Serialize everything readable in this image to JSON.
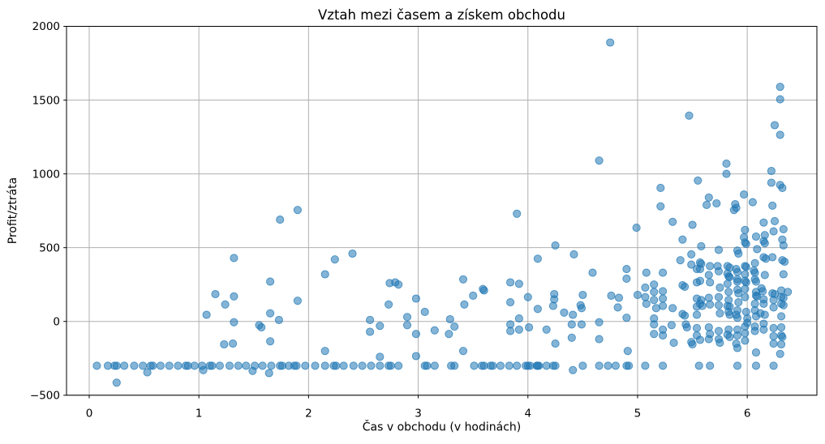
{
  "figure": {
    "title": "Vztah mezi časem a získem obchodu"
  },
  "chart_data": {
    "type": "scatter",
    "title": "Vztah mezi časem a získem obchodu",
    "xlabel": "Čas v obchodu (v hodinách)",
    "ylabel": "Profit/ztráta",
    "xlim": [
      -0.207,
      6.635
    ],
    "ylim": [
      -500,
      2000
    ],
    "grid": true,
    "legend_position": "none",
    "marker": {
      "shape": "circle",
      "color": "#1f77b4",
      "fill_alpha": 0.55,
      "edge_alpha": 0.75,
      "radius_px": 4.6
    },
    "grid_color": "#b0b0b0",
    "spine_color": "#000000",
    "xticks": [
      {
        "value": 0,
        "label": "0"
      },
      {
        "value": 1,
        "label": "1"
      },
      {
        "value": 2,
        "label": "2"
      },
      {
        "value": 3,
        "label": "3"
      },
      {
        "value": 4,
        "label": "4"
      },
      {
        "value": 5,
        "label": "5"
      },
      {
        "value": 6,
        "label": "6"
      }
    ],
    "yticks": [
      {
        "value": -500,
        "label": "−500"
      },
      {
        "value": 0,
        "label": "0"
      },
      {
        "value": 500,
        "label": "500"
      },
      {
        "value": 1000,
        "label": "1000"
      },
      {
        "value": 1500,
        "label": "1500"
      },
      {
        "value": 2000,
        "label": "2000"
      }
    ],
    "points": [
      [
        0.07,
        -300
      ],
      [
        0.17,
        -300
      ],
      [
        0.32,
        -300
      ],
      [
        0.41,
        -300
      ],
      [
        0.49,
        -300
      ],
      [
        0.65,
        -300
      ],
      [
        0.73,
        -300
      ],
      [
        0.81,
        -300
      ],
      [
        0.96,
        -300
      ],
      [
        1.03,
        -300
      ],
      [
        1.19,
        -300
      ],
      [
        1.28,
        -300
      ],
      [
        1.36,
        -300
      ],
      [
        1.43,
        -300
      ],
      [
        1.51,
        -300
      ],
      [
        1.58,
        -300
      ],
      [
        1.66,
        -300
      ],
      [
        1.82,
        -300
      ],
      [
        1.97,
        -300
      ],
      [
        2.06,
        -300
      ],
      [
        2.15,
        -300
      ],
      [
        2.32,
        -300
      ],
      [
        2.41,
        -300
      ],
      [
        2.49,
        -300
      ],
      [
        2.57,
        -300
      ],
      [
        2.65,
        -300
      ],
      [
        2.82,
        -300
      ],
      [
        3.15,
        -300
      ],
      [
        3.3,
        -300
      ],
      [
        3.33,
        -300
      ],
      [
        3.51,
        -300
      ],
      [
        3.75,
        -300
      ],
      [
        3.83,
        -300
      ],
      [
        3.9,
        -300
      ],
      [
        3.98,
        -300
      ],
      [
        4.17,
        -300
      ],
      [
        4.5,
        -300
      ],
      [
        4.65,
        -300
      ],
      [
        4.73,
        -300
      ],
      [
        4.8,
        -300
      ],
      [
        5.07,
        -300
      ],
      [
        5.23,
        -300
      ],
      [
        5.56,
        -300
      ],
      [
        5.66,
        -300
      ],
      [
        5.91,
        -300
      ],
      [
        6.08,
        -300
      ],
      [
        6.24,
        -300
      ],
      [
        0.23,
        -300
      ],
      [
        0.25,
        -300
      ],
      [
        0.56,
        -300
      ],
      [
        0.58,
        -300
      ],
      [
        0.88,
        -300
      ],
      [
        0.9,
        -300
      ],
      [
        1.1,
        -300
      ],
      [
        1.12,
        -300
      ],
      [
        1.74,
        -300
      ],
      [
        1.76,
        -300
      ],
      [
        1.87,
        -300
      ],
      [
        1.89,
        -300
      ],
      [
        2.23,
        -300
      ],
      [
        2.25,
        -300
      ],
      [
        2.73,
        -300
      ],
      [
        2.75,
        -300
      ],
      [
        3.06,
        -300
      ],
      [
        3.08,
        -300
      ],
      [
        3.58,
        -300
      ],
      [
        3.6,
        -300
      ],
      [
        3.66,
        -300
      ],
      [
        3.68,
        -300
      ],
      [
        4.0,
        -300
      ],
      [
        4.02,
        -300
      ],
      [
        4.23,
        -300
      ],
      [
        4.25,
        -300
      ],
      [
        4.9,
        -300
      ],
      [
        4.92,
        -300
      ],
      [
        4.08,
        -300
      ],
      [
        4.09,
        -300
      ],
      [
        4.1,
        -300
      ],
      [
        0.25,
        -415
      ],
      [
        0.53,
        -345
      ],
      [
        1.04,
        -330
      ],
      [
        1.49,
        -335
      ],
      [
        1.64,
        -350
      ],
      [
        4.41,
        -330
      ],
      [
        1.07,
        45
      ],
      [
        1.15,
        185
      ],
      [
        1.24,
        115
      ],
      [
        1.32,
        430
      ],
      [
        1.32,
        170
      ],
      [
        1.32,
        -5
      ],
      [
        1.23,
        -155
      ],
      [
        1.31,
        -150
      ],
      [
        1.55,
        -25
      ],
      [
        1.57,
        -40
      ],
      [
        1.65,
        270
      ],
      [
        1.65,
        55
      ],
      [
        1.65,
        -135
      ],
      [
        1.73,
        10
      ],
      [
        1.74,
        690
      ],
      [
        1.9,
        755
      ],
      [
        1.9,
        140
      ],
      [
        2.15,
        320
      ],
      [
        2.15,
        -200
      ],
      [
        2.24,
        420
      ],
      [
        2.4,
        460
      ],
      [
        2.56,
        10
      ],
      [
        2.56,
        -70
      ],
      [
        2.65,
        -30
      ],
      [
        2.65,
        -240
      ],
      [
        2.73,
        115
      ],
      [
        2.74,
        260
      ],
      [
        2.79,
        265
      ],
      [
        2.82,
        250
      ],
      [
        2.9,
        30
      ],
      [
        2.9,
        -25
      ],
      [
        2.98,
        155
      ],
      [
        2.98,
        -85
      ],
      [
        2.98,
        -235
      ],
      [
        3.06,
        65
      ],
      [
        3.15,
        -60
      ],
      [
        3.28,
        -85
      ],
      [
        3.29,
        15
      ],
      [
        3.33,
        -35
      ],
      [
        3.41,
        285
      ],
      [
        3.41,
        -200
      ],
      [
        3.42,
        115
      ],
      [
        3.5,
        175
      ],
      [
        3.59,
        220
      ],
      [
        3.6,
        210
      ],
      [
        3.84,
        265
      ],
      [
        3.84,
        130
      ],
      [
        3.84,
        -20
      ],
      [
        3.84,
        -65
      ],
      [
        3.9,
        730
      ],
      [
        3.92,
        255
      ],
      [
        3.92,
        20
      ],
      [
        3.92,
        -55
      ],
      [
        4.0,
        165
      ],
      [
        4.01,
        -40
      ],
      [
        4.09,
        425
      ],
      [
        4.09,
        85
      ],
      [
        4.17,
        -55
      ],
      [
        4.23,
        105
      ],
      [
        4.24,
        185
      ],
      [
        4.24,
        150
      ],
      [
        4.25,
        515
      ],
      [
        4.25,
        -150
      ],
      [
        4.33,
        60
      ],
      [
        4.4,
        -20
      ],
      [
        4.4,
        -110
      ],
      [
        4.41,
        45
      ],
      [
        4.42,
        455
      ],
      [
        4.48,
        110
      ],
      [
        4.49,
        90
      ],
      [
        4.49,
        -20
      ],
      [
        4.5,
        180
      ],
      [
        4.59,
        330
      ],
      [
        4.65,
        -5
      ],
      [
        4.65,
        -120
      ],
      [
        4.65,
        1090
      ],
      [
        4.75,
        1890
      ],
      [
        4.76,
        175
      ],
      [
        4.82,
        95
      ],
      [
        4.83,
        160
      ],
      [
        4.9,
        355
      ],
      [
        4.9,
        290
      ],
      [
        4.9,
        25
      ],
      [
        4.91,
        -200
      ],
      [
        4.99,
        635
      ],
      [
        5.0,
        180
      ],
      [
        5.07,
        230
      ],
      [
        5.07,
        165
      ],
      [
        5.08,
        330
      ],
      [
        5.08,
        120
      ],
      [
        5.15,
        250
      ],
      [
        5.15,
        200
      ],
      [
        5.15,
        145
      ],
      [
        5.17,
        90
      ],
      [
        5.15,
        20
      ],
      [
        5.15,
        -20
      ],
      [
        5.15,
        -85
      ],
      [
        5.21,
        905
      ],
      [
        5.21,
        780
      ],
      [
        5.23,
        330
      ],
      [
        5.23,
        205
      ],
      [
        5.23,
        155
      ],
      [
        5.23,
        105
      ],
      [
        5.23,
        -55
      ],
      [
        5.23,
        -95
      ],
      [
        5.31,
        -25
      ],
      [
        5.33,
        -145
      ],
      [
        5.32,
        675
      ],
      [
        5.32,
        90
      ],
      [
        5.39,
        415
      ],
      [
        5.41,
        555
      ],
      [
        5.41,
        245
      ],
      [
        5.43,
        235
      ],
      [
        5.41,
        50
      ],
      [
        5.43,
        40
      ],
      [
        5.44,
        -20
      ],
      [
        5.45,
        -40
      ],
      [
        5.47,
        1395
      ],
      [
        5.5,
        655
      ],
      [
        5.49,
        455
      ],
      [
        5.49,
        385
      ],
      [
        5.49,
        -140
      ],
      [
        5.5,
        -155
      ],
      [
        5.54,
        355
      ],
      [
        5.54,
        265
      ],
      [
        5.54,
        155
      ],
      [
        5.54,
        100
      ],
      [
        5.54,
        45
      ],
      [
        5.54,
        -45
      ],
      [
        5.54,
        -95
      ],
      [
        5.55,
        955
      ],
      [
        5.57,
        400
      ],
      [
        5.58,
        390
      ],
      [
        5.57,
        355
      ],
      [
        5.57,
        275
      ],
      [
        5.58,
        510
      ],
      [
        5.58,
        145
      ],
      [
        5.57,
        120
      ],
      [
        5.59,
        105
      ],
      [
        5.57,
        -125
      ],
      [
        5.63,
        790
      ],
      [
        5.65,
        840
      ],
      [
        5.66,
        375
      ],
      [
        5.65,
        315
      ],
      [
        5.66,
        265
      ],
      [
        5.65,
        160
      ],
      [
        5.66,
        115
      ],
      [
        5.65,
        -40
      ],
      [
        5.66,
        -85
      ],
      [
        5.65,
        -120
      ],
      [
        5.72,
        800
      ],
      [
        5.74,
        485
      ],
      [
        5.73,
        375
      ],
      [
        5.74,
        340
      ],
      [
        5.75,
        230
      ],
      [
        5.74,
        165
      ],
      [
        5.74,
        110
      ],
      [
        5.75,
        55
      ],
      [
        5.74,
        -65
      ],
      [
        5.74,
        -120
      ],
      [
        5.75,
        -145
      ],
      [
        5.81,
        1070
      ],
      [
        5.81,
        1000
      ],
      [
        5.82,
        375
      ],
      [
        5.84,
        365
      ],
      [
        5.82,
        325
      ],
      [
        5.83,
        305
      ],
      [
        5.84,
        300
      ],
      [
        5.82,
        255
      ],
      [
        5.83,
        200
      ],
      [
        5.83,
        145
      ],
      [
        5.82,
        105
      ],
      [
        5.84,
        100
      ],
      [
        5.83,
        65
      ],
      [
        5.84,
        45
      ],
      [
        5.83,
        -55
      ],
      [
        5.82,
        -90
      ],
      [
        5.84,
        -105
      ],
      [
        5.88,
        755
      ],
      [
        5.89,
        795
      ],
      [
        5.9,
        770
      ],
      [
        5.97,
        860
      ],
      [
        5.91,
        480
      ],
      [
        5.92,
        460
      ],
      [
        5.9,
        355
      ],
      [
        5.91,
        335
      ],
      [
        5.91,
        285
      ],
      [
        5.91,
        270
      ],
      [
        5.91,
        215
      ],
      [
        5.92,
        190
      ],
      [
        5.92,
        130
      ],
      [
        5.91,
        75
      ],
      [
        5.9,
        45
      ],
      [
        5.91,
        25
      ],
      [
        5.91,
        -55
      ],
      [
        5.91,
        -95
      ],
      [
        5.9,
        -150
      ],
      [
        5.91,
        -180
      ],
      [
        5.98,
        620
      ],
      [
        5.97,
        570
      ],
      [
        5.98,
        535
      ],
      [
        5.99,
        525
      ],
      [
        5.98,
        375
      ],
      [
        5.99,
        370
      ],
      [
        5.98,
        320
      ],
      [
        5.98,
        275
      ],
      [
        5.99,
        265
      ],
      [
        5.98,
        220
      ],
      [
        5.98,
        165
      ],
      [
        5.99,
        65
      ],
      [
        6.0,
        20
      ],
      [
        6.0,
        -10
      ],
      [
        5.98,
        -35
      ],
      [
        5.98,
        -80
      ],
      [
        5.98,
        -130
      ],
      [
        6.05,
        808
      ],
      [
        6.07,
        395
      ],
      [
        6.06,
        345
      ],
      [
        6.07,
        330
      ],
      [
        6.07,
        285
      ],
      [
        6.08,
        270
      ],
      [
        6.08,
        200
      ],
      [
        6.08,
        175
      ],
      [
        6.09,
        170
      ],
      [
        6.07,
        120
      ],
      [
        6.07,
        75
      ],
      [
        6.08,
        35
      ],
      [
        6.07,
        -35
      ],
      [
        6.07,
        -65
      ],
      [
        6.08,
        -210
      ],
      [
        6.08,
        575
      ],
      [
        6.09,
        490
      ],
      [
        6.15,
        670
      ],
      [
        6.16,
        585
      ],
      [
        6.15,
        545
      ],
      [
        6.16,
        530
      ],
      [
        6.15,
        435
      ],
      [
        6.17,
        425
      ],
      [
        6.16,
        315
      ],
      [
        6.13,
        225
      ],
      [
        6.14,
        205
      ],
      [
        6.15,
        150
      ],
      [
        6.15,
        120
      ],
      [
        6.12,
        55
      ],
      [
        6.16,
        45
      ],
      [
        6.15,
        -15
      ],
      [
        6.15,
        -55
      ],
      [
        6.25,
        1330
      ],
      [
        6.22,
        1020
      ],
      [
        6.22,
        940
      ],
      [
        6.23,
        785
      ],
      [
        6.25,
        680
      ],
      [
        6.24,
        610
      ],
      [
        6.23,
        435
      ],
      [
        6.23,
        190
      ],
      [
        6.25,
        185
      ],
      [
        6.24,
        145
      ],
      [
        6.24,
        95
      ],
      [
        6.24,
        -45
      ],
      [
        6.24,
        -100
      ],
      [
        6.24,
        -150
      ],
      [
        6.3,
        1590
      ],
      [
        6.3,
        1505
      ],
      [
        6.3,
        1265
      ],
      [
        6.3,
        925
      ],
      [
        6.32,
        905
      ],
      [
        6.33,
        625
      ],
      [
        6.32,
        555
      ],
      [
        6.33,
        515
      ],
      [
        6.32,
        415
      ],
      [
        6.34,
        405
      ],
      [
        6.33,
        320
      ],
      [
        6.31,
        210
      ],
      [
        6.37,
        200
      ],
      [
        6.31,
        165
      ],
      [
        6.33,
        160
      ],
      [
        6.31,
        120
      ],
      [
        6.33,
        110
      ],
      [
        6.31,
        35
      ],
      [
        6.31,
        -40
      ],
      [
        6.31,
        -95
      ],
      [
        6.32,
        -105
      ],
      [
        6.31,
        -155
      ],
      [
        6.3,
        -220
      ]
    ]
  }
}
